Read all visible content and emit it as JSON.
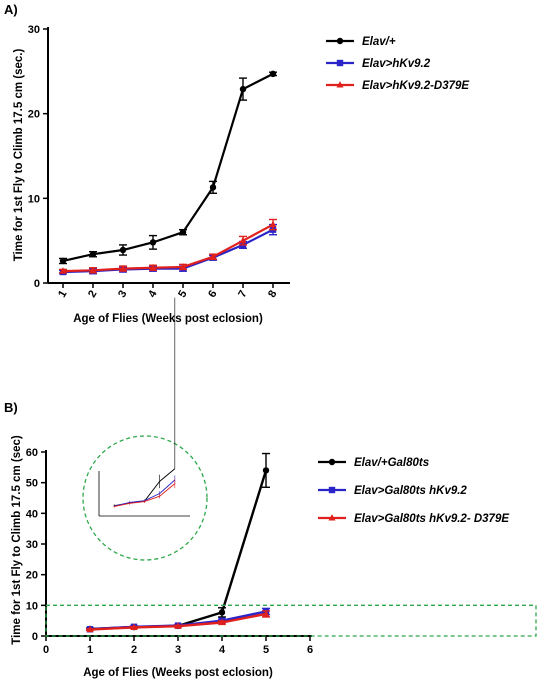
{
  "panel_a_label": "A)",
  "panel_b_label": "B)",
  "chart_data": [
    {
      "type": "line",
      "title": "",
      "xlabel": "Age of Flies (Weeks post eclosion)",
      "ylabel": "Time for 1st Fly to Climb 17.5 cm (sec.)",
      "x": [
        1,
        2,
        3,
        4,
        5,
        6,
        7,
        8
      ],
      "xlim": [
        0.5,
        8.5
      ],
      "ylim": [
        0,
        30
      ],
      "yticks": [
        "0",
        "10",
        "20",
        "30"
      ],
      "xticks": [
        "1",
        "2",
        "3",
        "4",
        "5",
        "6",
        "7",
        "8"
      ],
      "legend_position": "right",
      "series": [
        {
          "name": "Elav/+",
          "color": "#000000",
          "marker": "circle",
          "values": [
            2.6,
            3.4,
            3.9,
            4.8,
            6.0,
            11.3,
            22.9,
            24.7
          ],
          "errors": [
            0.3,
            0.3,
            0.6,
            0.8,
            0.3,
            0.7,
            1.3,
            0.2
          ]
        },
        {
          "name": "Elav>hKv9.2",
          "color": "#2b24c8",
          "marker": "square",
          "values": [
            1.3,
            1.4,
            1.6,
            1.7,
            1.7,
            3.0,
            4.5,
            6.3
          ],
          "errors": [
            0.2,
            0.3,
            0.3,
            0.3,
            0.3,
            0.3,
            0.4,
            0.6
          ]
        },
        {
          "name": "Elav>hKv9.2-D379E",
          "color": "#e0201c",
          "marker": "triangle",
          "values": [
            1.4,
            1.5,
            1.7,
            1.8,
            1.9,
            3.1,
            5.0,
            6.9
          ],
          "errors": [
            0.2,
            0.3,
            0.3,
            0.3,
            0.3,
            0.3,
            0.5,
            0.6
          ]
        }
      ]
    },
    {
      "type": "line",
      "title": "",
      "xlabel": "Age of Flies (Weeks post eclosion)",
      "ylabel": "Time for 1st Fly to Climb 17.5 cm (sec)",
      "x": [
        1,
        2,
        3,
        4,
        5
      ],
      "xlim": [
        0,
        6
      ],
      "ylim": [
        0,
        60
      ],
      "yticks": [
        "0",
        "10",
        "20",
        "30",
        "40",
        "50",
        "60"
      ],
      "xticks": [
        "0",
        "1",
        "2",
        "3",
        "4",
        "5",
        "6"
      ],
      "legend_position": "right",
      "zoom_box_ylim": [
        0,
        10
      ],
      "series": [
        {
          "name": "Elav/+Gal80ts",
          "color": "#000000",
          "marker": "circle",
          "values": [
            2.3,
            2.9,
            3.3,
            7.7,
            54.0
          ],
          "errors": [
            0.3,
            0.3,
            0.3,
            1.5,
            5.5
          ]
        },
        {
          "name": "Elav>Gal80ts hKv9.2",
          "color": "#2b24c8",
          "marker": "square",
          "values": [
            2.2,
            3.0,
            3.4,
            5.0,
            8.0
          ],
          "errors": [
            0.2,
            0.3,
            0.3,
            0.5,
            1.0
          ]
        },
        {
          "name": "Elav>Gal80ts hKv9.2- D379E",
          "color": "#e0201c",
          "marker": "triangle",
          "values": [
            2.1,
            2.8,
            3.2,
            4.4,
            7.2
          ],
          "errors": [
            0.2,
            0.3,
            0.3,
            0.5,
            1.0
          ]
        }
      ]
    }
  ]
}
